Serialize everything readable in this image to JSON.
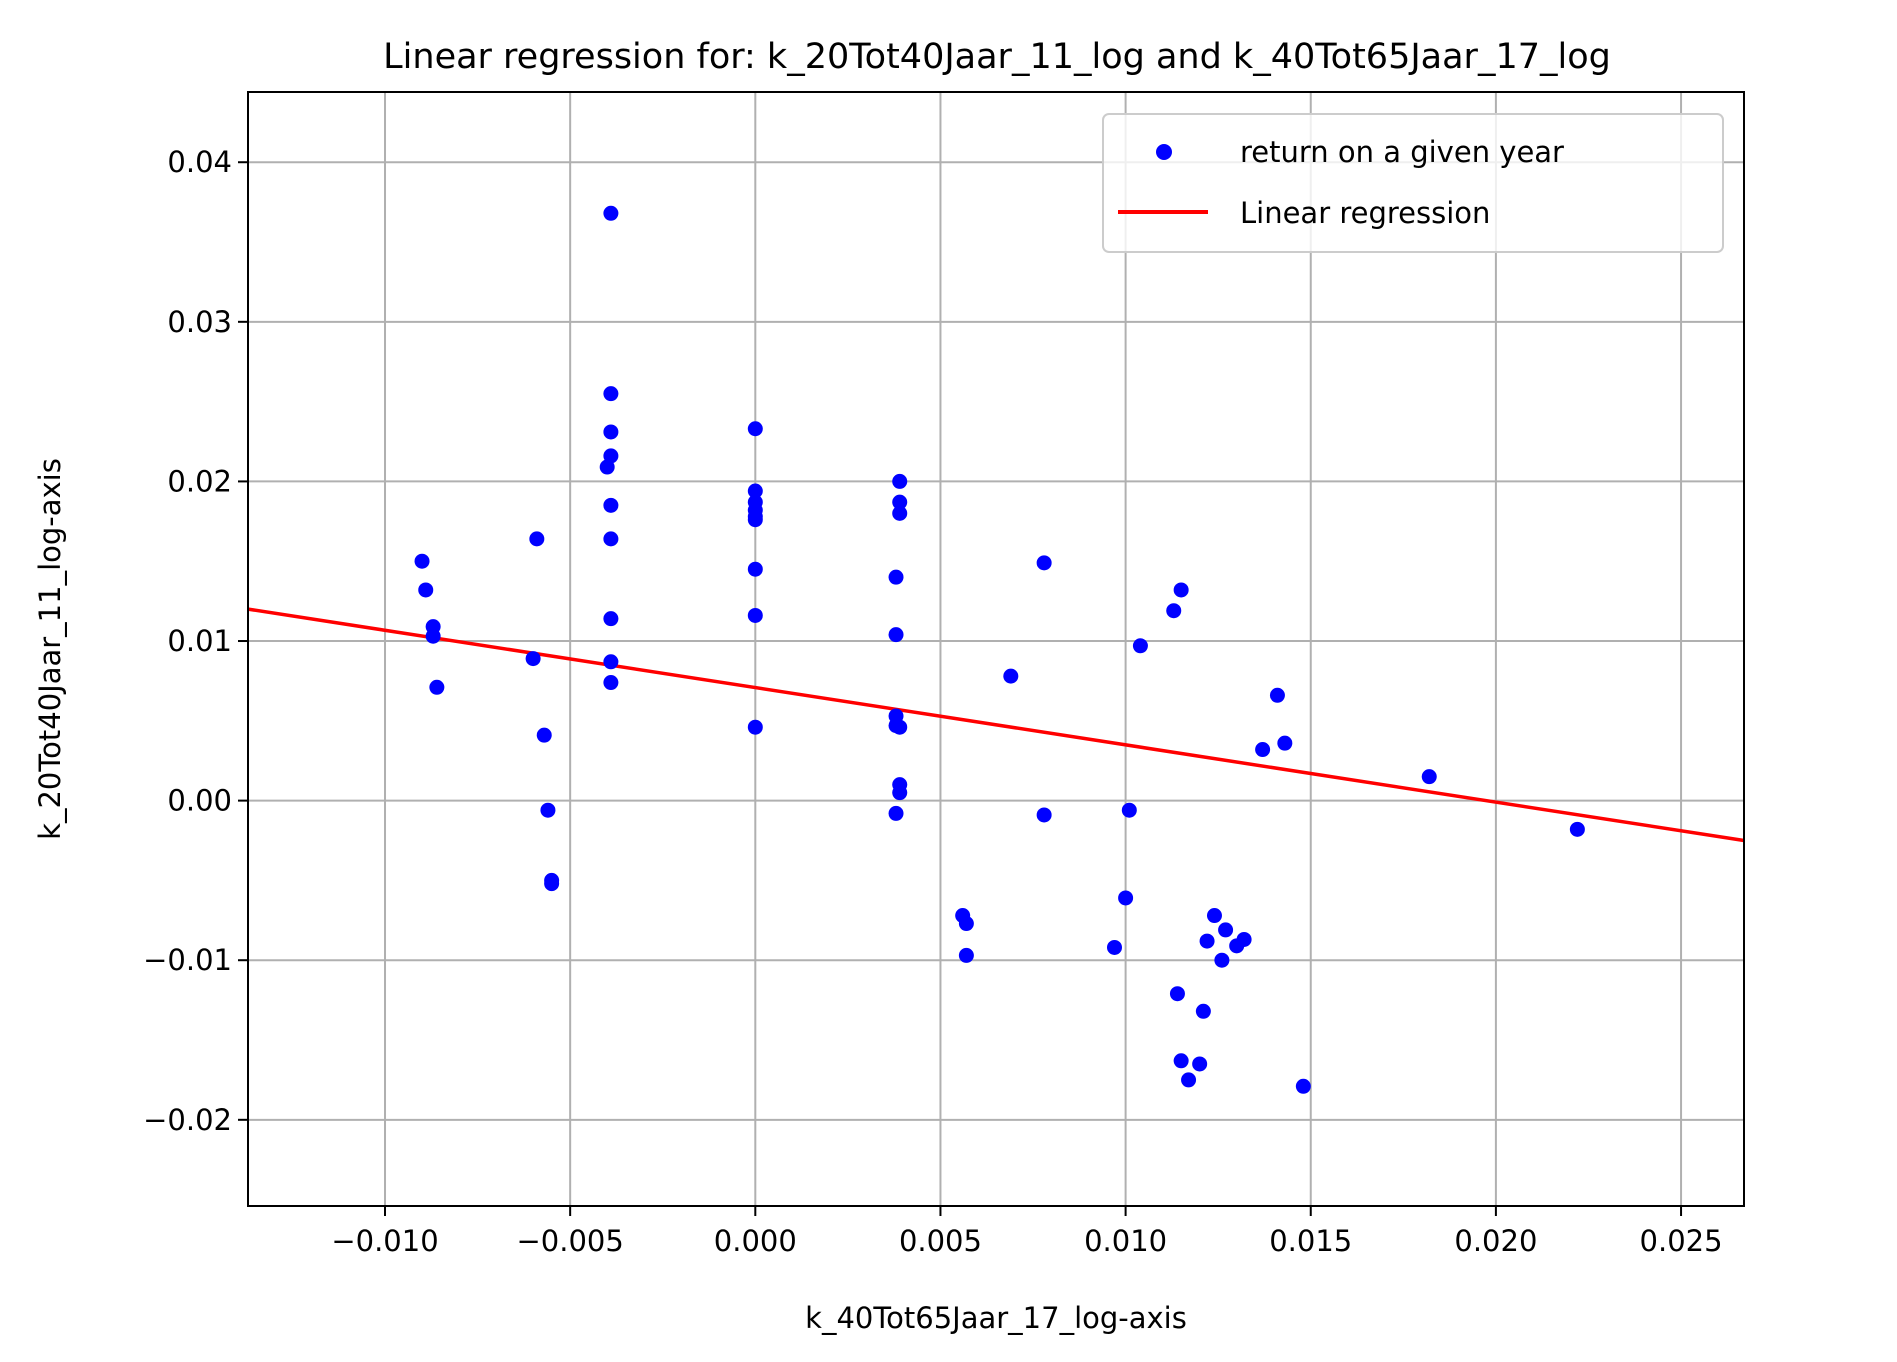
{
  "chart_data": {
    "type": "scatter",
    "title": "Linear regression for: k_20Tot40Jaar_11_log and k_40Tot65Jaar_17_log",
    "xlabel": "k_40Tot65Jaar_17_log-axis",
    "ylabel": "k_20Tot40Jaar_11_log-axis",
    "xlim": [
      -0.0137,
      0.0267
    ],
    "ylim": [
      -0.0254,
      0.0444
    ],
    "xticks": [
      -0.01,
      -0.005,
      0.0,
      0.005,
      0.01,
      0.015,
      0.02,
      0.025
    ],
    "xtick_labels": [
      "−0.010",
      "−0.005",
      "0.000",
      "0.005",
      "0.010",
      "0.015",
      "0.020",
      "0.025"
    ],
    "yticks": [
      -0.02,
      -0.01,
      0.0,
      0.01,
      0.02,
      0.03,
      0.04
    ],
    "ytick_labels": [
      "−0.02",
      "−0.01",
      "0.00",
      "0.01",
      "0.02",
      "0.03",
      "0.04"
    ],
    "grid": true,
    "legend_position": "top-right",
    "legend": [
      "return on a given year",
      "Linear regression"
    ],
    "colors": {
      "points": "#0000ff",
      "line": "#ff0000",
      "grid": "#b0b0b0"
    },
    "series": [
      {
        "name": "return on a given year",
        "kind": "scatter",
        "points": [
          [
            -0.009,
            0.015
          ],
          [
            -0.0089,
            0.0132
          ],
          [
            -0.0087,
            0.0109
          ],
          [
            -0.0087,
            0.0103
          ],
          [
            -0.0086,
            0.0071
          ],
          [
            -0.0059,
            0.0164
          ],
          [
            -0.006,
            0.0089
          ],
          [
            -0.0057,
            0.0041
          ],
          [
            -0.0056,
            -0.0006
          ],
          [
            -0.0055,
            -0.005
          ],
          [
            -0.0055,
            -0.0052
          ],
          [
            -0.0039,
            0.0368
          ],
          [
            -0.0039,
            0.0255
          ],
          [
            -0.0039,
            0.0231
          ],
          [
            -0.0039,
            0.0216
          ],
          [
            -0.004,
            0.0209
          ],
          [
            -0.0039,
            0.0185
          ],
          [
            -0.0039,
            0.0164
          ],
          [
            -0.0039,
            0.0114
          ],
          [
            -0.0039,
            0.0087
          ],
          [
            -0.0039,
            0.0074
          ],
          [
            0.0,
            0.0233
          ],
          [
            0.0,
            0.0194
          ],
          [
            0.0,
            0.0187
          ],
          [
            0.0,
            0.0182
          ],
          [
            0.0,
            0.0178
          ],
          [
            0.0,
            0.0176
          ],
          [
            0.0,
            0.0145
          ],
          [
            0.0,
            0.0116
          ],
          [
            0.0,
            0.0046
          ],
          [
            0.0039,
            0.02
          ],
          [
            0.0039,
            0.0187
          ],
          [
            0.0039,
            0.018
          ],
          [
            0.0038,
            0.014
          ],
          [
            0.0038,
            0.0104
          ],
          [
            0.0038,
            0.0053
          ],
          [
            0.0038,
            0.0047
          ],
          [
            0.0039,
            0.0046
          ],
          [
            0.0039,
            0.001
          ],
          [
            0.0039,
            0.0005
          ],
          [
            0.0038,
            -0.0008
          ],
          [
            0.0056,
            -0.0072
          ],
          [
            0.0057,
            -0.0077
          ],
          [
            0.0057,
            -0.0097
          ],
          [
            0.0069,
            0.0078
          ],
          [
            0.0078,
            0.0149
          ],
          [
            0.0078,
            -0.0009
          ],
          [
            0.0101,
            -0.0006
          ],
          [
            0.01,
            -0.0061
          ],
          [
            0.0097,
            -0.0092
          ],
          [
            0.0104,
            0.0097
          ],
          [
            0.0115,
            0.0132
          ],
          [
            0.0113,
            0.0119
          ],
          [
            0.0114,
            -0.0121
          ],
          [
            0.0115,
            -0.0163
          ],
          [
            0.0117,
            -0.0175
          ],
          [
            0.012,
            -0.0165
          ],
          [
            0.0121,
            -0.0132
          ],
          [
            0.0122,
            -0.0088
          ],
          [
            0.0124,
            -0.0072
          ],
          [
            0.0127,
            -0.0081
          ],
          [
            0.0126,
            -0.01
          ],
          [
            0.013,
            -0.0091
          ],
          [
            0.0132,
            -0.0087
          ],
          [
            0.0137,
            0.0032
          ],
          [
            0.0141,
            0.0066
          ],
          [
            0.0143,
            0.0036
          ],
          [
            0.0148,
            -0.0179
          ],
          [
            0.0182,
            0.0015
          ],
          [
            0.0222,
            -0.0018
          ]
        ]
      },
      {
        "name": "Linear regression",
        "kind": "line",
        "x": [
          -0.0137,
          0.0267
        ],
        "y": [
          0.012,
          -0.0025
        ]
      }
    ]
  }
}
